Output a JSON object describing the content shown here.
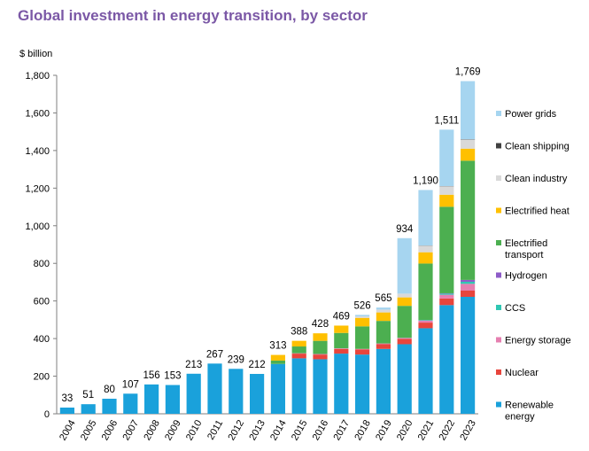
{
  "title": "Global investment in energy transition, by sector",
  "unit_label": "$ billion",
  "chart_data": {
    "type": "bar",
    "stacked": true,
    "title": "Global investment in energy transition, by sector",
    "ylabel": "$ billion",
    "ylim": [
      0,
      1800
    ],
    "yticks": [
      0,
      200,
      400,
      600,
      800,
      1000,
      1200,
      1400,
      1600,
      1800
    ],
    "ytick_labels": [
      "0",
      "200",
      "400",
      "600",
      "800",
      "1,000",
      "1,200",
      "1,400",
      "1,600",
      "1,800"
    ],
    "grid": false,
    "legend_position": "right",
    "categories": [
      "2004",
      "2005",
      "2006",
      "2007",
      "2008",
      "2009",
      "2010",
      "2011",
      "2012",
      "2013",
      "2014",
      "2015",
      "2016",
      "2017",
      "2018",
      "2019",
      "2020",
      "2021",
      "2022",
      "2023"
    ],
    "totals": [
      33,
      51,
      80,
      107,
      156,
      153,
      213,
      267,
      239,
      212,
      313,
      388,
      428,
      469,
      526,
      565,
      934,
      1190,
      1511,
      1769
    ],
    "total_labels": [
      "33",
      "51",
      "80",
      "107",
      "156",
      "153",
      "213",
      "267",
      "239",
      "212",
      "313",
      "388",
      "428",
      "469",
      "526",
      "565",
      "934",
      "1,190",
      "1,511",
      "1,769"
    ],
    "series": [
      {
        "name": "Renewable energy",
        "color": "#1aa1db",
        "values": [
          33,
          51,
          80,
          107,
          156,
          153,
          213,
          267,
          239,
          212,
          265,
          295,
          290,
          320,
          315,
          345,
          370,
          455,
          578,
          622
        ]
      },
      {
        "name": "Nuclear",
        "color": "#e8453c",
        "values": [
          0,
          0,
          0,
          0,
          0,
          0,
          0,
          0,
          0,
          0,
          0,
          25,
          25,
          25,
          27,
          25,
          28,
          30,
          35,
          33
        ]
      },
      {
        "name": "Energy storage",
        "color": "#e67fb0",
        "values": [
          0,
          0,
          0,
          0,
          0,
          0,
          0,
          0,
          0,
          0,
          0,
          2,
          3,
          3,
          3,
          4,
          5,
          10,
          20,
          36
        ]
      },
      {
        "name": "CCS",
        "color": "#2fc7b3",
        "values": [
          0,
          0,
          0,
          0,
          0,
          0,
          0,
          0,
          0,
          0,
          0,
          0,
          0,
          0,
          0,
          0,
          1,
          3,
          6,
          11
        ]
      },
      {
        "name": "Hydrogen",
        "color": "#8e5cc8",
        "values": [
          0,
          0,
          0,
          0,
          0,
          0,
          0,
          0,
          0,
          0,
          0,
          0,
          0,
          0,
          0,
          0,
          0,
          1,
          2,
          10
        ]
      },
      {
        "name": "Electrified transport",
        "color": "#4caf50",
        "values": [
          0,
          0,
          0,
          0,
          0,
          0,
          0,
          0,
          0,
          0,
          18,
          36,
          70,
          82,
          120,
          120,
          170,
          300,
          460,
          634
        ]
      },
      {
        "name": "Electrified heat",
        "color": "#ffc000",
        "values": [
          0,
          0,
          0,
          0,
          0,
          0,
          0,
          0,
          0,
          0,
          30,
          30,
          40,
          39,
          45,
          45,
          45,
          60,
          64,
          64
        ]
      },
      {
        "name": "Clean industry",
        "color": "#d9d9d9",
        "values": [
          0,
          0,
          0,
          0,
          0,
          0,
          0,
          0,
          0,
          0,
          0,
          0,
          0,
          0,
          8,
          15,
          20,
          35,
          45,
          48
        ]
      },
      {
        "name": "Clean shipping",
        "color": "#404040",
        "values": [
          0,
          0,
          0,
          0,
          0,
          0,
          0,
          0,
          0,
          0,
          0,
          0,
          0,
          0,
          0,
          0,
          0,
          1,
          1,
          2
        ]
      },
      {
        "name": "Power grids",
        "color": "#a6d5f0",
        "values": [
          0,
          0,
          0,
          0,
          0,
          0,
          0,
          0,
          0,
          0,
          0,
          0,
          0,
          0,
          8,
          11,
          295,
          295,
          300,
          309
        ]
      }
    ],
    "legend_order": [
      "Power grids",
      "Clean shipping",
      "Clean industry",
      "Electrified heat",
      "Electrified transport",
      "Hydrogen",
      "CCS",
      "Energy storage",
      "Nuclear",
      "Renewable energy"
    ],
    "legend_labels": {
      "Power grids": [
        "Power grids"
      ],
      "Clean shipping": [
        "Clean shipping"
      ],
      "Clean industry": [
        "Clean industry"
      ],
      "Electrified heat": [
        "Electrified heat"
      ],
      "Electrified transport": [
        "Electrified",
        "transport"
      ],
      "Hydrogen": [
        "Hydrogen"
      ],
      "CCS": [
        "CCS"
      ],
      "Energy storage": [
        "Energy storage"
      ],
      "Nuclear": [
        "Nuclear"
      ],
      "Renewable energy": [
        "Renewable",
        "energy"
      ]
    }
  }
}
